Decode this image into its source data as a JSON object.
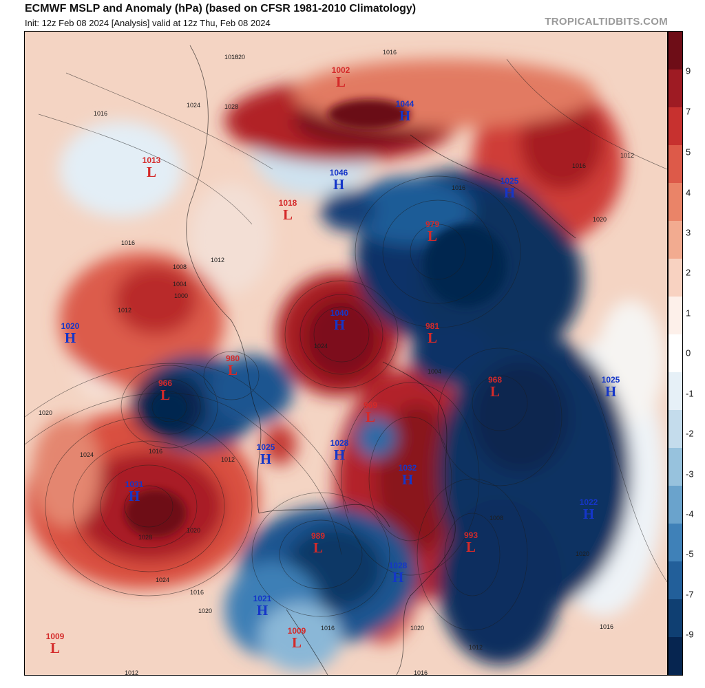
{
  "header": {
    "title": "ECMWF MSLP and Anomaly (hPa) (based on CFSR 1981-2010 Climatology)",
    "subtitle": "Init: 12z Feb 08 2024   [Analysis]   valid at 12z Thu, Feb 08 2024",
    "credit": "TROPICALTIDBITS.COM"
  },
  "colorbar": {
    "ticks": [
      "9",
      "7",
      "5",
      "4",
      "3",
      "2",
      "1",
      "0",
      "-1",
      "-2",
      "-3",
      "-4",
      "-5",
      "-7",
      "-9"
    ],
    "colors": [
      "#6e0d17",
      "#9e1b23",
      "#c7312f",
      "#dd5a49",
      "#ea8468",
      "#f2ab90",
      "#f8d2c1",
      "#fdf0ea",
      "#ffffff",
      "#e6f0f7",
      "#c4dcec",
      "#97c2dd",
      "#6aa3cc",
      "#3f81b8",
      "#225f9a",
      "#0f3f72",
      "#062550"
    ]
  },
  "pressure_centers": [
    {
      "type": "L",
      "value": "1002"
    },
    {
      "type": "H",
      "value": "1044"
    },
    {
      "type": "L",
      "value": "1013"
    },
    {
      "type": "H",
      "value": "1046"
    },
    {
      "type": "H",
      "value": "1025"
    },
    {
      "type": "L",
      "value": "1018"
    },
    {
      "type": "L",
      "value": "979"
    },
    {
      "type": "H",
      "value": "1040"
    },
    {
      "type": "L",
      "value": "981"
    },
    {
      "type": "H",
      "value": "1020"
    },
    {
      "type": "L",
      "value": "980"
    },
    {
      "type": "L",
      "value": "966"
    },
    {
      "type": "L",
      "value": "968"
    },
    {
      "type": "H",
      "value": "1025"
    },
    {
      "type": "L",
      "value": "969"
    },
    {
      "type": "H",
      "value": "1028"
    },
    {
      "type": "H",
      "value": "1025"
    },
    {
      "type": "H",
      "value": "1032"
    },
    {
      "type": "H",
      "value": "1031"
    },
    {
      "type": "H",
      "value": "1022"
    },
    {
      "type": "L",
      "value": "989"
    },
    {
      "type": "L",
      "value": "993"
    },
    {
      "type": "H",
      "value": "1028"
    },
    {
      "type": "H",
      "value": "1021"
    },
    {
      "type": "L",
      "value": "1009"
    },
    {
      "type": "L",
      "value": "1009"
    }
  ],
  "isobar_labels": [
    "1016",
    "1016",
    "1020",
    "1024",
    "1028",
    "1016",
    "1012",
    "1008",
    "1004",
    "1000",
    "1012",
    "1016",
    "1020",
    "1024",
    "1020",
    "1012",
    "1016",
    "1020",
    "1024",
    "1028",
    "1020",
    "1016",
    "1012",
    "1008",
    "1004",
    "1016",
    "1012",
    "1016",
    "1020",
    "1024",
    "1016",
    "1020",
    "1016",
    "1012",
    "1016"
  ]
}
